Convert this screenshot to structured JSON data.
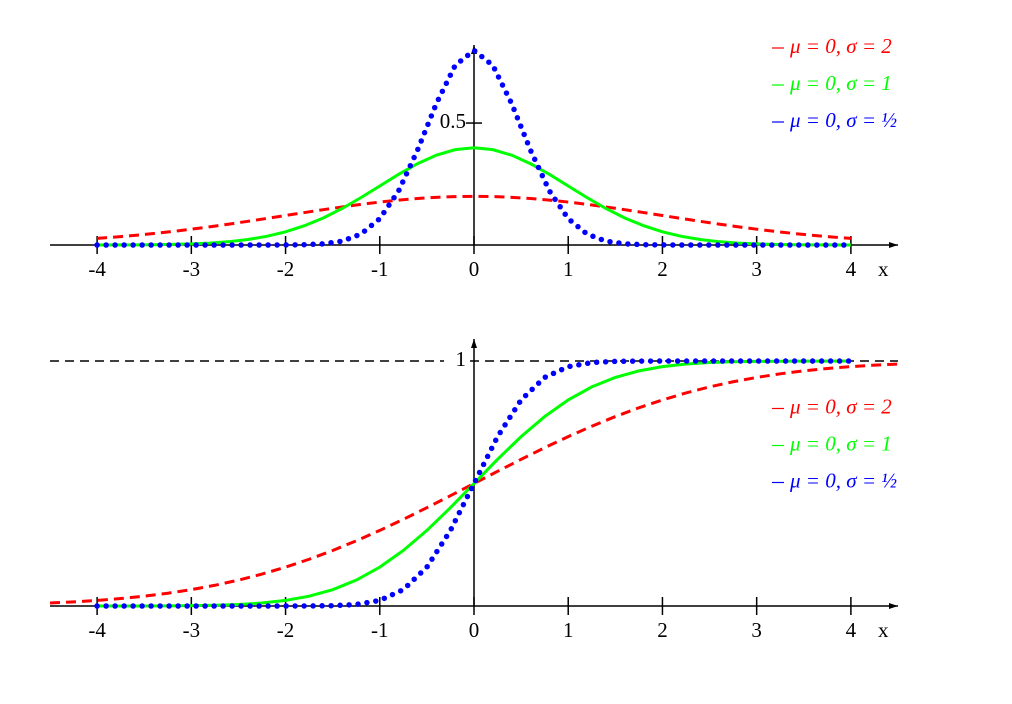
{
  "chart_data": [
    {
      "type": "line",
      "x": [
        -4,
        -3.8,
        -3.6,
        -3.4,
        -3.2,
        -3,
        -2.8,
        -2.6,
        -2.4,
        -2.2,
        -2,
        -1.8,
        -1.6,
        -1.4,
        -1.2,
        -1,
        -0.8,
        -0.6,
        -0.4,
        -0.2,
        0,
        0.2,
        0.4,
        0.6,
        0.8,
        1,
        1.2,
        1.4,
        1.6,
        1.8,
        2,
        2.2,
        2.4,
        2.6,
        2.8,
        3,
        3.2,
        3.4,
        3.6,
        3.8,
        4
      ],
      "series": [
        {
          "name": "μ = 0, σ = 2",
          "color": "#ff0000",
          "style": "dashed",
          "values": [
            0.027,
            0.0328,
            0.0395,
            0.047,
            0.0555,
            0.0648,
            0.0749,
            0.0857,
            0.0971,
            0.1089,
            0.121,
            0.133,
            0.1448,
            0.1561,
            0.1666,
            0.176,
            0.1841,
            0.1907,
            0.1955,
            0.1985,
            0.1995,
            0.1985,
            0.1955,
            0.1907,
            0.1841,
            0.176,
            0.1666,
            0.1561,
            0.1448,
            0.133,
            0.121,
            0.1089,
            0.0971,
            0.0857,
            0.0749,
            0.0648,
            0.0555,
            0.047,
            0.0395,
            0.0328,
            0.027
          ]
        },
        {
          "name": "μ = 0, σ = 1",
          "color": "#00ff00",
          "style": "solid",
          "values": [
            0.0001,
            0.0003,
            0.0006,
            0.0012,
            0.0024,
            0.0044,
            0.0079,
            0.0136,
            0.0224,
            0.0355,
            0.054,
            0.079,
            0.1109,
            0.1497,
            0.1942,
            0.242,
            0.2897,
            0.3332,
            0.3683,
            0.391,
            0.3989,
            0.391,
            0.3683,
            0.3332,
            0.2897,
            0.242,
            0.1942,
            0.1497,
            0.1109,
            0.079,
            0.054,
            0.0355,
            0.0224,
            0.0136,
            0.0079,
            0.0044,
            0.0024,
            0.0012,
            0.0006,
            0.0003,
            0.0001
          ]
        },
        {
          "name": "μ = 0, σ = ½",
          "color": "#0000ff",
          "style": "dotted",
          "values": [
            0,
            0,
            0,
            0,
            0,
            0,
            0,
            0,
            0,
            0,
            0.0003,
            0.0012,
            0.0048,
            0.0158,
            0.0448,
            0.108,
            0.2218,
            0.3884,
            0.5794,
            0.7365,
            0.7979,
            0.7365,
            0.5794,
            0.3884,
            0.2218,
            0.108,
            0.0448,
            0.0158,
            0.0048,
            0.0012,
            0.0003,
            0,
            0,
            0,
            0,
            0,
            0,
            0,
            0,
            0,
            0
          ]
        }
      ],
      "x_label": "x",
      "xlim": [
        -4.5,
        4.5
      ],
      "xticks": [
        -4,
        -3,
        -2,
        -1,
        0,
        1,
        2,
        3,
        4
      ],
      "ylim": [
        0,
        0.82
      ],
      "yticks": [
        0.5
      ],
      "grid": false,
      "legend": "upper right"
    },
    {
      "type": "line",
      "x": [
        -4.5,
        -4.25,
        -4,
        -3.75,
        -3.5,
        -3.25,
        -3,
        -2.75,
        -2.5,
        -2.25,
        -2,
        -1.75,
        -1.5,
        -1.25,
        -1,
        -0.75,
        -0.5,
        -0.25,
        0,
        0.25,
        0.5,
        0.75,
        1,
        1.25,
        1.5,
        1.75,
        2,
        2.25,
        2.5,
        2.75,
        3,
        3.25,
        3.5,
        3.75,
        4,
        4.25,
        4.5
      ],
      "series": [
        {
          "name": "μ = 0, σ = 2",
          "color": "#ff0000",
          "style": "dashed",
          "values": [
            0.0122,
            0.0168,
            0.0228,
            0.0304,
            0.0401,
            0.0521,
            0.0668,
            0.0846,
            0.1056,
            0.1303,
            0.1587,
            0.1908,
            0.2266,
            0.266,
            0.3085,
            0.3538,
            0.4013,
            0.4503,
            0.5,
            0.5497,
            0.5987,
            0.6462,
            0.6915,
            0.734,
            0.7734,
            0.8092,
            0.8413,
            0.8697,
            0.8944,
            0.9154,
            0.9332,
            0.9479,
            0.9599,
            0.9696,
            0.9772,
            0.9832,
            0.9878
          ]
        },
        {
          "name": "μ = 0, σ = 1",
          "color": "#00ff00",
          "style": "solid",
          "values": [
            null,
            null,
            0,
            0.0001,
            0.0002,
            0.0006,
            0.0013,
            0.003,
            0.0062,
            0.0122,
            0.0228,
            0.0401,
            0.0668,
            0.1056,
            0.1587,
            0.2266,
            0.3085,
            0.4013,
            0.5,
            0.5987,
            0.6915,
            0.7734,
            0.8413,
            0.8944,
            0.9332,
            0.9599,
            0.9772,
            0.9878,
            0.9938,
            0.997,
            0.9987,
            0.9994,
            0.9998,
            0.9999,
            1,
            null,
            null
          ]
        },
        {
          "name": "μ = 0, σ = ½",
          "color": "#0000ff",
          "style": "dotted",
          "values": [
            null,
            null,
            0,
            0,
            0,
            0,
            0,
            0,
            0,
            0,
            0,
            0.0002,
            0.0013,
            0.0062,
            0.0228,
            0.0668,
            0.1587,
            0.3085,
            0.5,
            0.6915,
            0.8413,
            0.9332,
            0.9772,
            0.9938,
            0.9987,
            0.9998,
            1,
            1,
            1,
            1,
            1,
            1,
            1,
            1,
            1,
            null,
            null
          ]
        }
      ],
      "x_label": "x",
      "xlim": [
        -4.5,
        4.5
      ],
      "xticks": [
        -4,
        -3,
        -2,
        -1,
        0,
        1,
        2,
        3,
        4
      ],
      "ylim": [
        0,
        1.09
      ],
      "yticks": [
        1
      ],
      "grid": true,
      "legend": "right"
    }
  ]
}
